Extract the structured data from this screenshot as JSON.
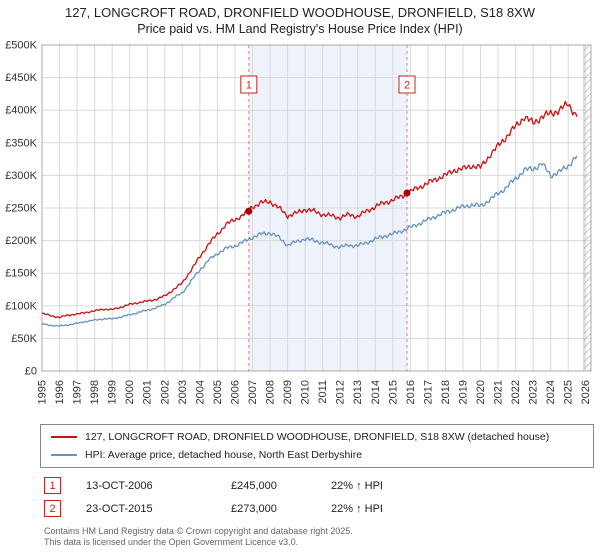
{
  "colors": {
    "accent_red": "#cc2222",
    "series_red": "#cc1111",
    "series_blue": "#6692c4",
    "shade_blue": "#e8eef8"
  },
  "chart_data": {
    "type": "line",
    "title": "127, LONGCROFT ROAD, DRONFIELD WOODHOUSE, DRONFIELD, S18 8XW",
    "subtitle": "Price paid vs. HM Land Registry's House Price Index (HPI)",
    "xlabel": "",
    "ylabel": "",
    "x_range": [
      1995,
      2026.3
    ],
    "ylim": [
      0,
      500000
    ],
    "x_start": 1995,
    "x_step": 0.5,
    "grid": true,
    "legend_position": "bottom",
    "y_tick_labels": [
      "£0",
      "£50K",
      "£100K",
      "£150K",
      "£200K",
      "£250K",
      "£300K",
      "£350K",
      "£400K",
      "£450K",
      "£500K"
    ],
    "x_tick_labels": [
      "1995",
      "1996",
      "1997",
      "1998",
      "1999",
      "2000",
      "2001",
      "2002",
      "2003",
      "2004",
      "2005",
      "2006",
      "2007",
      "2008",
      "2009",
      "2010",
      "2011",
      "2012",
      "2013",
      "2014",
      "2015",
      "2016",
      "2017",
      "2018",
      "2019",
      "2020",
      "2021",
      "2022",
      "2023",
      "2024",
      "2025",
      "2026"
    ],
    "series": [
      {
        "name": "127, LONGCROFT ROAD, DRONFIELD WOODHOUSE, DRONFIELD, S18 8XW (detached house)",
        "color": "#cc1111",
        "values": [
          88000,
          85000,
          82000,
          86000,
          87000,
          90000,
          92000,
          95000,
          94000,
          98000,
          102000,
          105000,
          107000,
          110000,
          115000,
          125000,
          135000,
          155000,
          175000,
          195000,
          210000,
          225000,
          232000,
          240000,
          252000,
          258000,
          260000,
          250000,
          238000,
          242000,
          248000,
          245000,
          240000,
          238000,
          235000,
          240000,
          237000,
          245000,
          252000,
          258000,
          262000,
          268000,
          275000,
          282000,
          288000,
          295000,
          300000,
          308000,
          310000,
          315000,
          312000,
          330000,
          345000,
          360000,
          375000,
          390000,
          380000,
          390000,
          395000,
          400000,
          410000,
          390000
        ]
      },
      {
        "name": "HPI: Average price, detached house, North East Derbyshire",
        "color": "#6692c4",
        "values": [
          72000,
          70000,
          69000,
          71000,
          73000,
          76000,
          78000,
          80000,
          80000,
          83000,
          86000,
          90000,
          93000,
          97000,
          102000,
          112000,
          120000,
          138000,
          155000,
          170000,
          180000,
          188000,
          192000,
          198000,
          205000,
          210000,
          212000,
          205000,
          193000,
          198000,
          203000,
          200000,
          197000,
          193000,
          190000,
          193000,
          192000,
          197000,
          202000,
          207000,
          210000,
          215000,
          220000,
          226000,
          232000,
          238000,
          243000,
          248000,
          252000,
          255000,
          253000,
          262000,
          272000,
          282000,
          295000,
          308000,
          310000,
          318000,
          300000,
          305000,
          315000,
          330000
        ]
      }
    ],
    "shaded_region": [
      2006.79,
      2015.81
    ],
    "hatch_region": [
      2025.9,
      2026.3
    ],
    "markers": [
      {
        "label": "1",
        "x": 2006.79,
        "value": 245000,
        "date": "13-OCT-2006",
        "price": "£245,000",
        "hpi_delta": "22% ↑ HPI"
      },
      {
        "label": "2",
        "x": 2015.81,
        "value": 273000,
        "date": "23-OCT-2015",
        "price": "£273,000",
        "hpi_delta": "22% ↑ HPI"
      }
    ]
  },
  "footer": {
    "line1": "Contains HM Land Registry data © Crown copyright and database right 2025.",
    "line2": "This data is licensed under the Open Government Licence v3.0."
  }
}
